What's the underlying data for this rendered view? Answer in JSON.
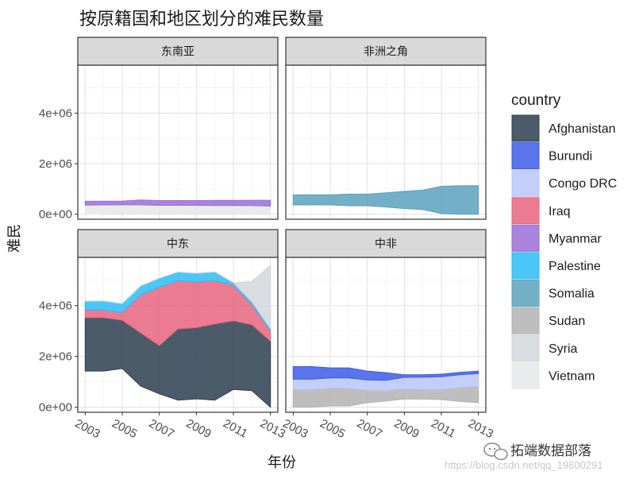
{
  "chart_data": {
    "type": "area",
    "title": "按原籍国和地区划分的难民数量",
    "xlabel": "年份",
    "ylabel": "难民",
    "x": [
      2003,
      2004,
      2005,
      2006,
      2007,
      2008,
      2009,
      2010,
      2011,
      2012,
      2013
    ],
    "x_ticks": [
      2003,
      2005,
      2007,
      2009,
      2011,
      2013
    ],
    "x_tick_labels": [
      "2003",
      "2005",
      "2007",
      "2009",
      "2011",
      "2013"
    ],
    "y_ticks": [
      0,
      2000000,
      4000000
    ],
    "y_tick_labels": [
      "0e+00",
      "2e+06",
      "4e+06"
    ],
    "ylim": [
      -200000,
      5900000
    ],
    "xlim": [
      2002.6,
      2013.4
    ],
    "stacking": "stream",
    "grid": true,
    "legend": {
      "title": "country",
      "position": "right",
      "entries": [
        "Afghanistan",
        "Burundi",
        "Congo DRC",
        "Iraq",
        "Myanmar",
        "Palestine",
        "Somalia",
        "Sudan",
        "Syria",
        "Vietnam"
      ]
    },
    "colors": {
      "Afghanistan": "#2c3e50",
      "Burundi": "#3d5ce8",
      "Congo DRC": "#b9c7f8",
      "Iraq": "#e8647e",
      "Myanmar": "#9b6fd6",
      "Palestine": "#2bbcf4",
      "Somalia": "#5aa2be",
      "Sudan": "#b3b3b3",
      "Syria": "#d2d6da",
      "Vietnam": "#e6e8ea"
    },
    "facets": [
      {
        "label": "东南亚",
        "series": [
          {
            "name": "Vietnam",
            "values": [
              310000,
              320000,
              330000,
              370000,
              330000,
              330000,
              330000,
              330000,
              330000,
              330000,
              310000
            ]
          },
          {
            "name": "Myanmar",
            "values": [
              150000,
              150000,
              150000,
              190000,
              190000,
              190000,
              190000,
              200000,
              200000,
              210000,
              230000
            ]
          }
        ]
      },
      {
        "label": "非洲之角",
        "series": [
          {
            "name": "Somalia",
            "values": [
              400000,
              400000,
              400000,
              460000,
              460000,
              560000,
              680000,
              770000,
              1080000,
              1130000,
              1130000
            ]
          }
        ]
      },
      {
        "label": "中东",
        "series": [
          {
            "name": "Afghanistan",
            "values": [
              2100000,
              2100000,
              1900000,
              2100000,
              1900000,
              2800000,
              2800000,
              3000000,
              2700000,
              2600000,
              2600000
            ]
          },
          {
            "name": "Iraq",
            "values": [
              300000,
              300000,
              300000,
              1500000,
              2300000,
              1900000,
              1800000,
              1700000,
              1400000,
              800000,
              400000
            ]
          },
          {
            "name": "Palestine",
            "values": [
              350000,
              350000,
              350000,
              350000,
              350000,
              340000,
              340000,
              340000,
              100000,
              100000,
              100000
            ]
          },
          {
            "name": "Syria",
            "values": [
              0,
              0,
              0,
              0,
              0,
              0,
              0,
              0,
              0,
              800000,
              2500000
            ]
          }
        ]
      },
      {
        "label": "中非",
        "series": [
          {
            "name": "Sudan",
            "values": [
              700000,
              700000,
              700000,
              700000,
              500000,
              420000,
              400000,
              380000,
              400000,
              550000,
              650000
            ]
          },
          {
            "name": "Congo DRC",
            "values": [
              400000,
              400000,
              400000,
              400000,
              400000,
              400000,
              450000,
              480000,
              500000,
              500000,
              500000
            ]
          },
          {
            "name": "Burundi",
            "values": [
              500000,
              500000,
              400000,
              400000,
              350000,
              300000,
              100000,
              100000,
              100000,
              100000,
              100000
            ]
          }
        ]
      }
    ]
  },
  "watermark": {
    "brand": "拓端数据部落",
    "url": "https://blog.csdn.net/qq_19600291"
  }
}
